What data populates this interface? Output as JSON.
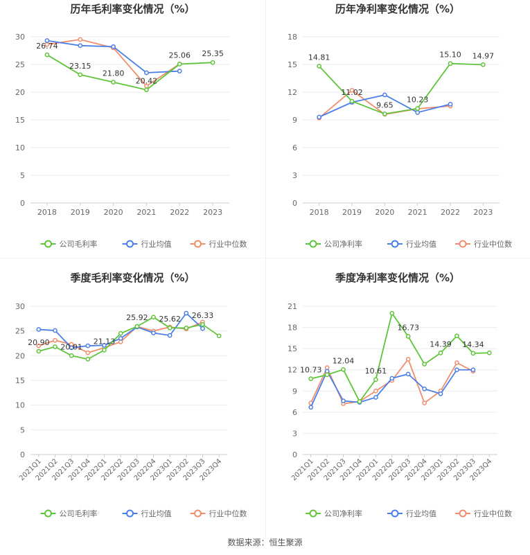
{
  "colors": {
    "company": "#5ec43a",
    "industry_avg": "#4a7ee8",
    "industry_median": "#f08d6c"
  },
  "legend": {
    "gross": "公司毛利率",
    "net": "公司净利率",
    "avg": "行业均值",
    "median": "行业中位数"
  },
  "source": "数据来源：恒生聚源",
  "chart_data": [
    {
      "type": "line",
      "title": "历年毛利率变化情况（%）",
      "categories": [
        "2018",
        "2019",
        "2020",
        "2021",
        "2022",
        "2023"
      ],
      "ylim": [
        0,
        30
      ],
      "yticks": [
        0,
        5,
        10,
        15,
        20,
        25,
        30
      ],
      "grid": true,
      "legend_position": "bottom",
      "series": [
        {
          "name": "公司毛利率",
          "values": [
            26.74,
            23.15,
            21.8,
            20.42,
            25.06,
            25.35
          ],
          "labels": [
            "26.74",
            "23.15",
            "21.80",
            "20.42",
            "25.06",
            "25.35"
          ]
        },
        {
          "name": "行业均值",
          "values": [
            29.3,
            28.4,
            28.2,
            23.5,
            23.8,
            null
          ]
        },
        {
          "name": "行业中位数",
          "values": [
            28.6,
            29.5,
            28.0,
            21.1,
            25.1,
            null
          ]
        }
      ]
    },
    {
      "type": "line",
      "title": "历年净利率变化情况（%）",
      "categories": [
        "2018",
        "2019",
        "2020",
        "2021",
        "2022",
        "2023"
      ],
      "ylim": [
        0,
        18
      ],
      "yticks": [
        0,
        3,
        6,
        9,
        12,
        15,
        18
      ],
      "grid": true,
      "legend_position": "bottom",
      "series": [
        {
          "name": "公司净利率",
          "values": [
            14.81,
            11.02,
            9.65,
            10.23,
            15.1,
            14.97
          ],
          "labels": [
            "14.81",
            "11.02",
            "9.65",
            "10.23",
            "15.10",
            "14.97"
          ]
        },
        {
          "name": "行业均值",
          "values": [
            9.3,
            10.9,
            11.7,
            9.8,
            10.7,
            null
          ]
        },
        {
          "name": "行业中位数",
          "values": [
            9.2,
            12.2,
            9.6,
            10.2,
            10.5,
            null
          ]
        }
      ]
    },
    {
      "type": "line",
      "title": "季度毛利率变化情况（%）",
      "categories": [
        "2021Q1",
        "2021Q2",
        "2021Q3",
        "2021Q4",
        "2022Q1",
        "2022Q2",
        "2022Q3",
        "2022Q4",
        "2023Q1",
        "2023Q2",
        "2023Q3",
        "2023Q4"
      ],
      "ylim": [
        0,
        30
      ],
      "yticks": [
        0,
        5,
        10,
        15,
        20,
        25,
        30
      ],
      "grid": true,
      "legend_position": "bottom",
      "series": [
        {
          "name": "公司毛利率",
          "values": [
            20.9,
            21.8,
            20.01,
            19.3,
            21.13,
            24.5,
            25.92,
            27.8,
            25.62,
            25.6,
            26.33,
            24.0
          ],
          "labels": [
            "20.90",
            "",
            "20.01",
            "",
            "21.13",
            "",
            "25.92",
            "",
            "25.62",
            "",
            "26.33",
            ""
          ]
        },
        {
          "name": "行业均值",
          "values": [
            25.3,
            25.1,
            21.6,
            22.0,
            22.1,
            23.5,
            25.8,
            24.6,
            24.1,
            28.6,
            25.5,
            null
          ]
        },
        {
          "name": "行业中位数",
          "values": [
            22.0,
            23.1,
            22.3,
            20.6,
            21.6,
            22.8,
            25.9,
            25.0,
            25.8,
            25.4,
            26.8,
            null
          ]
        }
      ]
    },
    {
      "type": "line",
      "title": "季度净利率变化情况（%）",
      "categories": [
        "2021Q1",
        "2021Q2",
        "2021Q3",
        "2021Q4",
        "2022Q1",
        "2022Q2",
        "2022Q3",
        "2022Q4",
        "2023Q1",
        "2023Q2",
        "2023Q3",
        "2023Q4"
      ],
      "ylim": [
        0,
        21
      ],
      "yticks": [
        0,
        3,
        6,
        9,
        12,
        15,
        18,
        21
      ],
      "grid": true,
      "legend_position": "bottom",
      "series": [
        {
          "name": "公司净利率",
          "values": [
            10.73,
            11.3,
            12.04,
            7.5,
            10.61,
            20.0,
            16.73,
            12.8,
            14.39,
            16.8,
            14.34,
            14.4
          ],
          "labels": [
            "10.73",
            "",
            "12.04",
            "",
            "10.61",
            "",
            "16.73",
            "",
            "14.39",
            "",
            "14.34",
            ""
          ]
        },
        {
          "name": "行业均值",
          "values": [
            6.7,
            11.8,
            7.6,
            7.4,
            8.1,
            10.8,
            11.4,
            9.3,
            8.6,
            12.0,
            12.0,
            null
          ]
        },
        {
          "name": "行业中位数",
          "values": [
            7.3,
            12.3,
            7.2,
            7.5,
            9.0,
            10.5,
            13.5,
            7.3,
            9.0,
            13.0,
            11.8,
            null
          ]
        }
      ]
    }
  ]
}
